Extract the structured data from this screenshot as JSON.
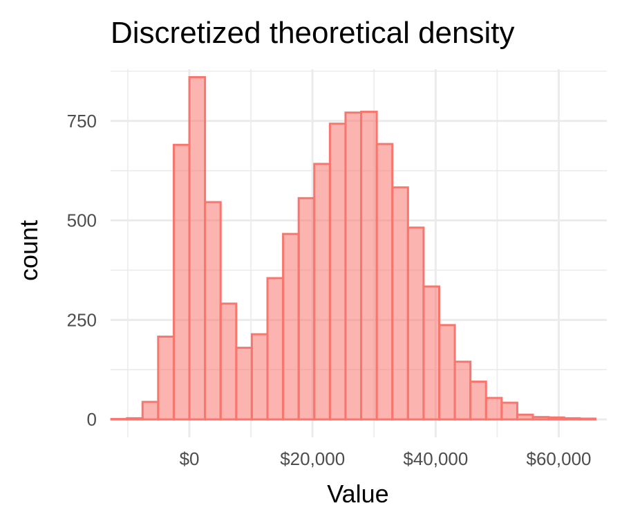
{
  "chart_data": {
    "type": "bar",
    "title": "Discretized theoretical density",
    "xlabel": "Value",
    "ylabel": "count",
    "x_ticks": [
      {
        "value": 0,
        "label": "$0"
      },
      {
        "value": 20000,
        "label": "$20,000"
      },
      {
        "value": 40000,
        "label": "$40,000"
      },
      {
        "value": 60000,
        "label": "$60,000"
      }
    ],
    "y_ticks": [
      {
        "value": 0,
        "label": "0"
      },
      {
        "value": 250,
        "label": "250"
      },
      {
        "value": 500,
        "label": "500"
      },
      {
        "value": 750,
        "label": "750"
      }
    ],
    "xlim": [
      -12800,
      67800
    ],
    "ylim": [
      -45,
      880
    ],
    "bin_width": 2536,
    "bin_centers": [
      -11410,
      -8874,
      -6338,
      -3802,
      -1266,
      1270,
      3806,
      6342,
      8878,
      11414,
      13950,
      16486,
      19022,
      21558,
      24094,
      26630,
      29166,
      31702,
      34238,
      36774,
      39310,
      41846,
      44382,
      46918,
      49454,
      51990,
      54526,
      57062,
      59598,
      62134,
      64670
    ],
    "values": [
      1,
      3,
      44,
      208,
      690,
      860,
      546,
      291,
      180,
      214,
      355,
      466,
      556,
      642,
      743,
      771,
      773,
      692,
      583,
      482,
      334,
      237,
      145,
      95,
      54,
      42,
      12,
      6,
      5,
      3,
      2
    ],
    "grid": true,
    "colors": {
      "bar_fill": "#f8766d",
      "bar_stroke": "#f8766d",
      "grid": "#ebebeb",
      "tick_label": "#4d4d4d"
    }
  }
}
